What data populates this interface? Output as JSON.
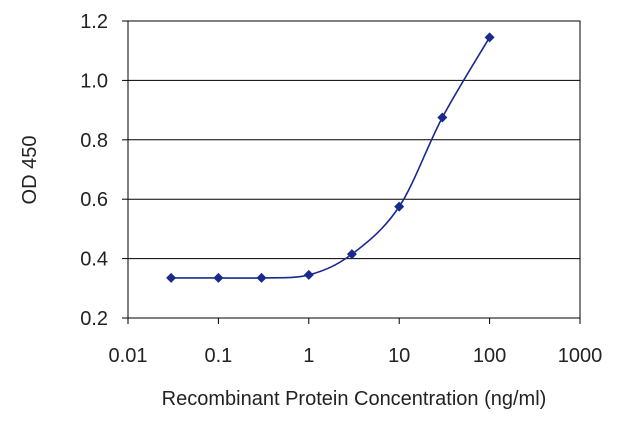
{
  "chart_data": {
    "type": "line",
    "title": "",
    "xlabel": "Recombinant Protein Concentration (ng/ml)",
    "ylabel": "OD 450",
    "x_scale": "log",
    "xlim": [
      0.01,
      1000
    ],
    "ylim": [
      0.2,
      1.2
    ],
    "x_ticks": [
      0.01,
      0.1,
      1,
      10,
      100,
      1000
    ],
    "x_tick_labels": [
      "0.01",
      "0.1",
      "1",
      "10",
      "100",
      "1000"
    ],
    "y_ticks": [
      0.2,
      0.4,
      0.6,
      0.8,
      1.0,
      1.2
    ],
    "y_tick_labels": [
      "0.2",
      "0.4",
      "0.6",
      "0.8",
      "1.0",
      "1.2"
    ],
    "grid": "horizontal",
    "legend": "none",
    "series": [
      {
        "x": [
          0.03,
          0.1,
          0.3,
          1,
          3,
          10,
          30,
          100
        ],
        "y": [
          0.335,
          0.335,
          0.335,
          0.345,
          0.415,
          0.575,
          0.875,
          1.145
        ],
        "color": "#1a2a8c"
      }
    ]
  }
}
